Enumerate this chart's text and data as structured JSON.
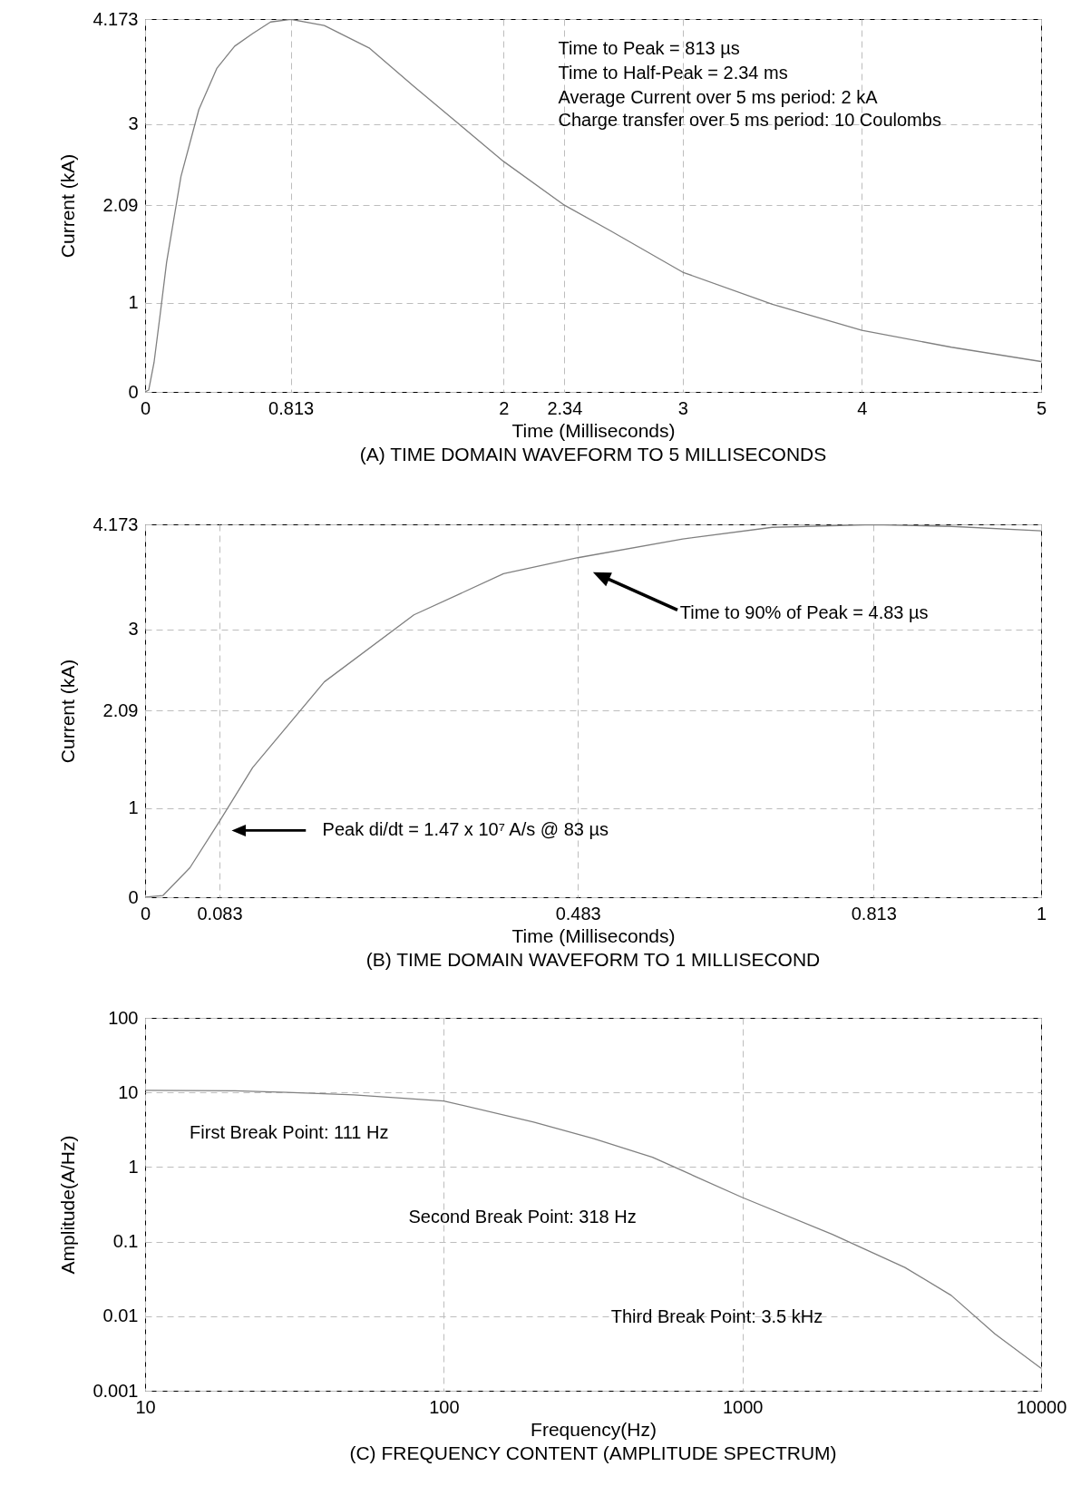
{
  "chart_data": [
    {
      "type": "line",
      "title": "(A)  TIME DOMAIN WAVEFORM TO 5 MILLISECONDS",
      "xlabel": "Time (Milliseconds)",
      "ylabel": "Current (kA)",
      "xlim": [
        0,
        5
      ],
      "ylim": [
        0,
        4.173
      ],
      "xticks": [
        0,
        0.813,
        2,
        2.34,
        3,
        4,
        5
      ],
      "yticks": [
        0,
        1,
        2.09,
        3,
        4.173
      ],
      "grid": true,
      "series": [
        {
          "color": "#808080",
          "x": [
            0,
            0.02,
            0.05,
            0.083,
            0.12,
            0.2,
            0.3,
            0.4,
            0.5,
            0.6,
            0.7,
            0.813,
            1.0,
            1.25,
            1.5,
            1.75,
            2,
            2.34,
            2.6,
            3,
            3.5,
            4,
            4.5,
            5
          ],
          "values": [
            0,
            0.02,
            0.33,
            0.85,
            1.45,
            2.41,
            3.16,
            3.62,
            3.87,
            4.01,
            4.14,
            4.17,
            4.1,
            3.85,
            3.42,
            3.0,
            2.58,
            2.09,
            1.8,
            1.34,
            0.98,
            0.69,
            0.5,
            0.34
          ]
        }
      ],
      "annotations": [
        "Time to Peak = 813 µs",
        "Time to Half-Peak = 2.34 ms",
        "Average Current over 5 ms period: 2 kA",
        "Charge transfer over 5 ms period: 10 Coulombs"
      ]
    },
    {
      "type": "line",
      "title": "(B)  TIME DOMAIN WAVEFORM TO 1 MILLISECOND",
      "xlabel": "Time (Milliseconds)",
      "ylabel": "Current (kA)",
      "xlim": [
        0,
        1
      ],
      "ylim": [
        0,
        4.173
      ],
      "xticks": [
        0,
        0.083,
        0.483,
        0.813,
        1
      ],
      "yticks": [
        0,
        1,
        2.09,
        3,
        4.173
      ],
      "grid": true,
      "series": [
        {
          "color": "#808080",
          "x": [
            0,
            0.02,
            0.05,
            0.083,
            0.12,
            0.2,
            0.3,
            0.4,
            0.483,
            0.6,
            0.7,
            0.813,
            0.9,
            1.0
          ],
          "values": [
            0,
            0.02,
            0.33,
            0.85,
            1.45,
            2.41,
            3.16,
            3.62,
            3.8,
            4.01,
            4.14,
            4.17,
            4.15,
            4.1
          ]
        }
      ],
      "annotations": [
        "Time to 90% of Peak = 4.83 µs",
        "Peak di/dt = 1.47 x 10⁷ A/s @ 83 µs"
      ]
    },
    {
      "type": "line",
      "title": "(C)  FREQUENCY CONTENT (AMPLITUDE SPECTRUM)",
      "xlabel": "Frequency(Hz)",
      "ylabel": "Amplitude(A/Hz)",
      "xlim": [
        10,
        10000
      ],
      "ylim": [
        0.001,
        100
      ],
      "xticks": [
        10,
        100,
        1000,
        10000
      ],
      "yticks": [
        0.001,
        0.01,
        0.1,
        1,
        10,
        100
      ],
      "grid": true,
      "log": "xy",
      "series": [
        {
          "color": "#808080",
          "x": [
            10,
            20,
            30,
            50,
            100,
            200,
            318,
            500,
            1000,
            2000,
            3500,
            5000,
            7000,
            10000
          ],
          "values": [
            10.7,
            10.5,
            10,
            9.3,
            7.7,
            4.0,
            2.4,
            1.35,
            0.39,
            0.125,
            0.045,
            0.019,
            0.0058,
            0.002
          ]
        }
      ],
      "annotations": [
        "First Break Point: 111 Hz",
        "Second Break Point: 318 Hz",
        "Third Break Point: 3.5 kHz"
      ]
    }
  ]
}
